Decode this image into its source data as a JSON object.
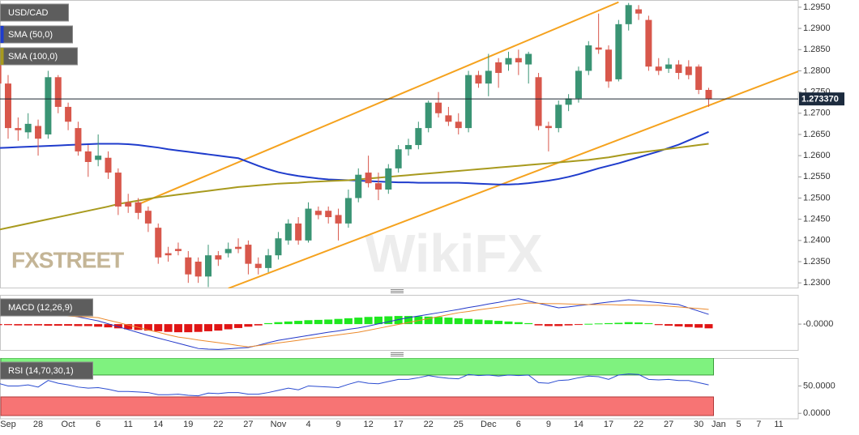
{
  "chart_data": [
    {
      "type": "candlestick",
      "title": "USD/CAD",
      "categories": [
        null,
        "Sep",
        null,
        null,
        "28",
        null,
        null,
        "Oct",
        null,
        null,
        "6",
        null,
        null,
        "11",
        null,
        null,
        "14",
        null,
        null,
        "19",
        null,
        null,
        "22",
        null,
        null,
        "27",
        null,
        null,
        "Nov",
        null,
        null,
        "4",
        null,
        null,
        "9",
        null,
        null,
        "12",
        null,
        null,
        "17",
        null,
        null,
        "22",
        null,
        null,
        "25",
        null,
        null,
        "Dec",
        null,
        null,
        "6",
        null,
        null,
        "9",
        null,
        null,
        "14",
        null,
        null,
        "17",
        null,
        null,
        "22",
        null,
        null,
        "27",
        null,
        null,
        "30",
        null,
        "Jan",
        null,
        "5",
        null,
        "7",
        null,
        "11"
      ],
      "open": [
        1.283,
        1.277,
        1.2665,
        1.2655,
        1.267,
        1.265,
        1.2785,
        1.2715,
        1.2665,
        1.261,
        1.259,
        1.2595,
        1.256,
        1.249,
        1.249,
        1.247,
        1.243,
        1.237,
        1.238,
        1.236,
        1.235,
        1.2315,
        1.2365,
        1.237,
        1.2385,
        1.239,
        1.2345,
        1.2335,
        1.2365,
        1.24,
        1.244,
        1.24,
        1.247,
        1.247,
        1.246,
        1.244,
        1.25,
        1.256,
        1.2535,
        1.252,
        1.257,
        1.2615,
        1.2625,
        1.2665,
        1.2725,
        1.2695,
        1.268,
        1.2665,
        1.279,
        1.277,
        1.282,
        1.2815,
        1.283,
        1.2815,
        1.2785,
        1.267,
        1.2665,
        1.272,
        1.2735,
        1.28,
        1.2855,
        1.285,
        1.278,
        1.291,
        1.2945,
        1.292,
        1.281,
        1.2805,
        1.2815,
        1.281,
        1.281,
        1.2755,
        null,
        null,
        null,
        null,
        null,
        null,
        null
      ],
      "high": [
        1.285,
        1.279,
        1.269,
        1.27,
        1.2685,
        1.28,
        1.279,
        1.2725,
        1.268,
        1.2625,
        1.265,
        1.261,
        1.257,
        1.251,
        1.25,
        1.248,
        1.244,
        1.2385,
        1.2395,
        1.2375,
        1.236,
        1.239,
        1.2375,
        1.2395,
        1.2405,
        1.24,
        1.236,
        1.238,
        1.242,
        1.245,
        1.2455,
        1.249,
        1.248,
        1.248,
        1.2475,
        1.252,
        1.257,
        1.26,
        1.256,
        1.258,
        1.2625,
        1.264,
        1.268,
        1.273,
        1.275,
        1.2715,
        1.27,
        1.28,
        1.28,
        1.284,
        1.283,
        1.2845,
        1.285,
        1.2845,
        1.2795,
        1.268,
        1.273,
        1.2745,
        1.281,
        1.287,
        1.2935,
        1.286,
        1.292,
        1.296,
        1.2955,
        1.293,
        1.283,
        1.283,
        1.2825,
        1.2825,
        1.2815,
        1.276,
        null,
        null,
        null,
        null,
        null,
        null,
        null
      ],
      "low": [
        1.2745,
        1.264,
        1.2635,
        1.264,
        1.26,
        1.264,
        1.27,
        1.266,
        1.26,
        1.255,
        1.2575,
        1.2545,
        1.246,
        1.2465,
        1.245,
        1.242,
        1.2345,
        1.235,
        1.2365,
        1.23,
        1.23,
        1.229,
        1.234,
        1.236,
        1.237,
        1.232,
        1.232,
        1.2325,
        1.2355,
        1.239,
        1.239,
        1.2395,
        1.245,
        1.244,
        1.24,
        1.243,
        1.249,
        1.2525,
        1.2495,
        1.251,
        1.256,
        1.26,
        1.2615,
        1.2655,
        1.269,
        1.267,
        1.265,
        1.2655,
        1.276,
        1.274,
        1.276,
        1.28,
        1.279,
        1.277,
        1.266,
        1.261,
        1.2655,
        1.2705,
        1.2725,
        1.279,
        1.284,
        1.276,
        1.2775,
        1.2895,
        1.292,
        1.28,
        1.279,
        1.2795,
        1.278,
        1.278,
        1.2745,
        1.2715,
        null,
        null,
        null,
        null,
        null,
        null,
        null
      ],
      "close": [
        1.277,
        1.2665,
        1.266,
        1.2675,
        1.264,
        1.2785,
        1.2715,
        1.268,
        1.261,
        1.2585,
        1.26,
        1.256,
        1.248,
        1.248,
        1.2465,
        1.244,
        1.236,
        1.2365,
        1.2375,
        1.232,
        1.2315,
        1.2365,
        1.2355,
        1.238,
        1.238,
        1.2345,
        1.2335,
        1.2365,
        1.2405,
        1.244,
        1.24,
        1.2475,
        1.246,
        1.2455,
        1.244,
        1.25,
        1.2555,
        1.2535,
        1.252,
        1.257,
        1.2615,
        1.2625,
        1.2665,
        1.2725,
        1.27,
        1.268,
        1.2665,
        1.279,
        1.277,
        1.28,
        1.2795,
        1.283,
        1.282,
        1.284,
        1.267,
        1.2665,
        1.272,
        1.2735,
        1.28,
        1.286,
        1.285,
        1.2775,
        1.291,
        1.2955,
        1.2935,
        1.281,
        1.28,
        1.2815,
        1.2795,
        1.279,
        1.2755,
        1.27337,
        null,
        null,
        null,
        null,
        null,
        null,
        null
      ],
      "up_color": "#3a9474",
      "down_color": "#d8574b",
      "series": [
        {
          "name": "SMA (50,0)",
          "color": "#1f3ccc",
          "values": [
            1.2618,
            1.2619,
            1.262,
            1.2621,
            1.2622,
            1.2623,
            1.2624,
            1.2625,
            1.2626,
            1.2627,
            1.2628,
            1.2628,
            1.2628,
            1.2627,
            1.2625,
            1.2622,
            1.2619,
            1.2615,
            1.2612,
            1.2609,
            1.2606,
            1.2603,
            1.26,
            1.2597,
            1.2594,
            1.2585,
            1.2576,
            1.2568,
            1.2561,
            1.2556,
            1.2552,
            1.2549,
            1.2546,
            1.2544,
            1.2543,
            1.2542,
            1.2541,
            1.254,
            1.2539,
            1.2538,
            1.2537,
            1.2537,
            1.2536,
            1.2536,
            1.2536,
            1.2536,
            1.2536,
            1.2535,
            1.2534,
            1.2533,
            1.2532,
            1.2532,
            1.2533,
            1.2535,
            1.2538,
            1.2541,
            1.2545,
            1.255,
            1.2556,
            1.2563,
            1.257,
            1.2576,
            1.2582,
            1.2589,
            1.2596,
            1.2603,
            1.261,
            1.2618,
            1.2626,
            1.2636,
            1.2646,
            1.2656,
            null,
            null,
            null,
            null,
            null,
            null,
            null
          ]
        },
        {
          "name": "SMA (100,0)",
          "color": "#a89a1e",
          "values": [
            1.2425,
            1.243,
            1.2435,
            1.244,
            1.2445,
            1.245,
            1.2455,
            1.246,
            1.2465,
            1.247,
            1.2475,
            1.248,
            1.2486,
            1.249,
            1.2494,
            1.2498,
            1.2502,
            1.2505,
            1.2508,
            1.2511,
            1.2514,
            1.2517,
            1.252,
            1.2523,
            1.2526,
            1.2528,
            1.253,
            1.2532,
            1.2534,
            1.2535,
            1.2536,
            1.2538,
            1.2539,
            1.254,
            1.2541,
            1.2542,
            1.2544,
            1.2546,
            1.2548,
            1.255,
            1.2552,
            1.2554,
            1.2556,
            1.2558,
            1.256,
            1.2562,
            1.2564,
            1.2566,
            1.2568,
            1.257,
            1.2572,
            1.2574,
            1.2576,
            1.2578,
            1.258,
            1.2582,
            1.2584,
            1.2586,
            1.2588,
            1.259,
            1.2593,
            1.2596,
            1.26,
            1.2604,
            1.2607,
            1.261,
            1.2613,
            1.2616,
            1.2619,
            1.2622,
            1.2625,
            1.2628,
            null,
            null,
            null,
            null,
            null,
            null,
            null
          ]
        }
      ],
      "trend_lines": [
        {
          "color": "#f5a21e",
          "x": [
            14,
            62
          ],
          "y": [
            1.2485,
            1.2962
          ]
        },
        {
          "color": "#f5a21e",
          "x": [
            23,
            87
          ],
          "y": [
            1.2287,
            1.2862
          ]
        }
      ],
      "last_price": {
        "value": 1.27337,
        "label": "1.273370"
      },
      "ylim": [
        1.2287,
        1.2967
      ],
      "yticks": [
        {
          "value": 1.295,
          "label": "1.2950"
        },
        {
          "value": 1.29,
          "label": "1.2900"
        },
        {
          "value": 1.285,
          "label": "1.2850"
        },
        {
          "value": 1.28,
          "label": "1.2800"
        },
        {
          "value": 1.275,
          "label": "1.2750"
        },
        {
          "value": 1.27,
          "label": "1.2700"
        },
        {
          "value": 1.265,
          "label": "1.2650"
        },
        {
          "value": 1.26,
          "label": "1.2600"
        },
        {
          "value": 1.255,
          "label": "1.2550"
        },
        {
          "value": 1.25,
          "label": "1.2500"
        },
        {
          "value": 1.245,
          "label": "1.2450"
        },
        {
          "value": 1.24,
          "label": "1.2400"
        },
        {
          "value": 1.235,
          "label": "1.2350"
        },
        {
          "value": 1.23,
          "label": "1.2300"
        }
      ]
    },
    {
      "type": "macd",
      "title": "MACD (12,26,9)",
      "histogram": {
        "up_color": "#1ee81e",
        "down_color": "#e01414",
        "values": [
          -0.0003,
          -0.0003,
          -0.0004,
          -0.0004,
          -0.0004,
          -0.0005,
          -0.0005,
          -0.0005,
          -0.0006,
          -0.0006,
          -0.0008,
          -0.001,
          -0.0013,
          -0.0016,
          -0.0018,
          -0.002,
          -0.0022,
          -0.0024,
          -0.0025,
          -0.0025,
          -0.0024,
          -0.0022,
          -0.002,
          -0.0016,
          -0.0012,
          -0.0008,
          -0.0004,
          0.0003,
          0.0006,
          0.0008,
          0.001,
          0.0012,
          0.0013,
          0.0014,
          0.0016,
          0.0018,
          0.002,
          0.0022,
          0.0023,
          0.0024,
          0.0025,
          0.0025,
          0.0024,
          0.0023,
          0.0022,
          0.002,
          0.0018,
          0.0016,
          0.0014,
          0.0012,
          0.001,
          0.0008,
          0.0006,
          0.0003,
          -0.0004,
          -0.0006,
          -0.0006,
          -0.0004,
          -0.0002,
          0.0001,
          0.0002,
          0.0003,
          0.0004,
          0.0006,
          0.0005,
          0.0003,
          -0.0003,
          -0.0005,
          -0.0007,
          -0.0009,
          -0.0011,
          -0.0013,
          null,
          null,
          null,
          null,
          null,
          null,
          null
        ]
      },
      "lines": [
        {
          "color": "#2237c9",
          "values": [
            0.0055,
            0.0052,
            0.0049,
            0.0046,
            0.0043,
            0.004,
            0.0034,
            0.0028,
            0.0022,
            0.0016,
            0.001,
            0.0001,
            -0.0008,
            -0.0017,
            -0.0026,
            -0.0035,
            -0.0043,
            -0.0051,
            -0.0059,
            -0.0067,
            -0.0075,
            -0.0077,
            -0.0078,
            -0.0076,
            -0.0074,
            -0.0072,
            -0.0065,
            -0.0057,
            -0.005,
            -0.0045,
            -0.004,
            -0.0035,
            -0.003,
            -0.0025,
            -0.0021,
            -0.0016,
            -0.0012,
            -0.0006,
            0.0001,
            0.0007,
            0.0014,
            0.002,
            0.0025,
            0.003,
            0.0035,
            0.004,
            0.0045,
            0.0051,
            0.0056,
            0.0062,
            0.0067,
            0.0073,
            0.0078,
            0.0071,
            0.0064,
            0.0057,
            0.005,
            0.0053,
            0.0057,
            0.006,
            0.0064,
            0.0068,
            0.0071,
            0.0075,
            0.0072,
            0.0069,
            0.0066,
            0.0063,
            0.006,
            0.005,
            0.004,
            0.003,
            null,
            null,
            null,
            null,
            null,
            null,
            null
          ]
        },
        {
          "color": "#ec8a2c",
          "values": [
            0.0037,
            0.0035,
            0.0034,
            0.0032,
            0.003,
            0.0029,
            0.0027,
            0.0025,
            0.0023,
            0.0022,
            0.002,
            0.0012,
            0.0005,
            -0.0003,
            -0.001,
            -0.0018,
            -0.0025,
            -0.0033,
            -0.004,
            -0.0044,
            -0.0049,
            -0.0053,
            -0.0057,
            -0.0061,
            -0.0066,
            -0.007,
            -0.0066,
            -0.0062,
            -0.0058,
            -0.0054,
            -0.005,
            -0.0045,
            -0.0041,
            -0.0037,
            -0.0033,
            -0.0029,
            -0.0025,
            -0.0019,
            -0.0013,
            -0.0007,
            -0.0001,
            0.0005,
            0.0011,
            0.0017,
            0.0023,
            0.0029,
            0.0035,
            0.0039,
            0.0044,
            0.0048,
            0.0052,
            0.0057,
            0.0061,
            0.0065,
            0.0064,
            0.0063,
            0.0063,
            0.0062,
            0.0061,
            0.006,
            0.006,
            0.006,
            0.0059,
            0.0059,
            0.0059,
            0.0058,
            0.0058,
            0.0055,
            0.0053,
            0.005,
            0.0048,
            0.0045,
            null,
            null,
            null,
            null,
            null,
            null,
            null
          ]
        }
      ],
      "ylim": [
        -0.0082,
        0.009
      ],
      "yticks": [
        {
          "value": 0,
          "label": "-0.0000"
        }
      ]
    },
    {
      "type": "rsi",
      "title": "RSI (14,70,30,1)",
      "color": "#2a4bd0",
      "upper_band": 70,
      "lower_band": 30,
      "upper_band_color": "#7ff27f",
      "lower_band_color": "#f77474",
      "values": [
        55,
        50,
        50,
        52,
        48,
        60,
        55,
        52,
        48,
        46,
        47,
        44,
        40,
        40,
        39,
        38,
        34,
        34,
        35,
        33,
        32,
        37,
        36,
        38,
        38,
        35,
        35,
        38,
        42,
        46,
        43,
        50,
        49,
        48,
        47,
        53,
        58,
        55,
        54,
        58,
        62,
        62,
        65,
        69,
        66,
        64,
        63,
        71,
        69,
        70,
        68,
        70,
        69,
        70,
        56,
        55,
        60,
        61,
        65,
        68,
        67,
        62,
        70,
        72,
        71,
        62,
        61,
        62,
        60,
        60,
        56,
        52,
        null,
        null,
        null,
        null,
        null,
        null,
        null
      ],
      "ylim": [
        -10,
        101
      ],
      "yticks": [
        {
          "value": 50,
          "label": "50.0000"
        },
        {
          "value": 0,
          "label": "0.0000"
        }
      ]
    }
  ],
  "watermarks": {
    "brand": "FXSTREET",
    "site": "WikiFX"
  }
}
